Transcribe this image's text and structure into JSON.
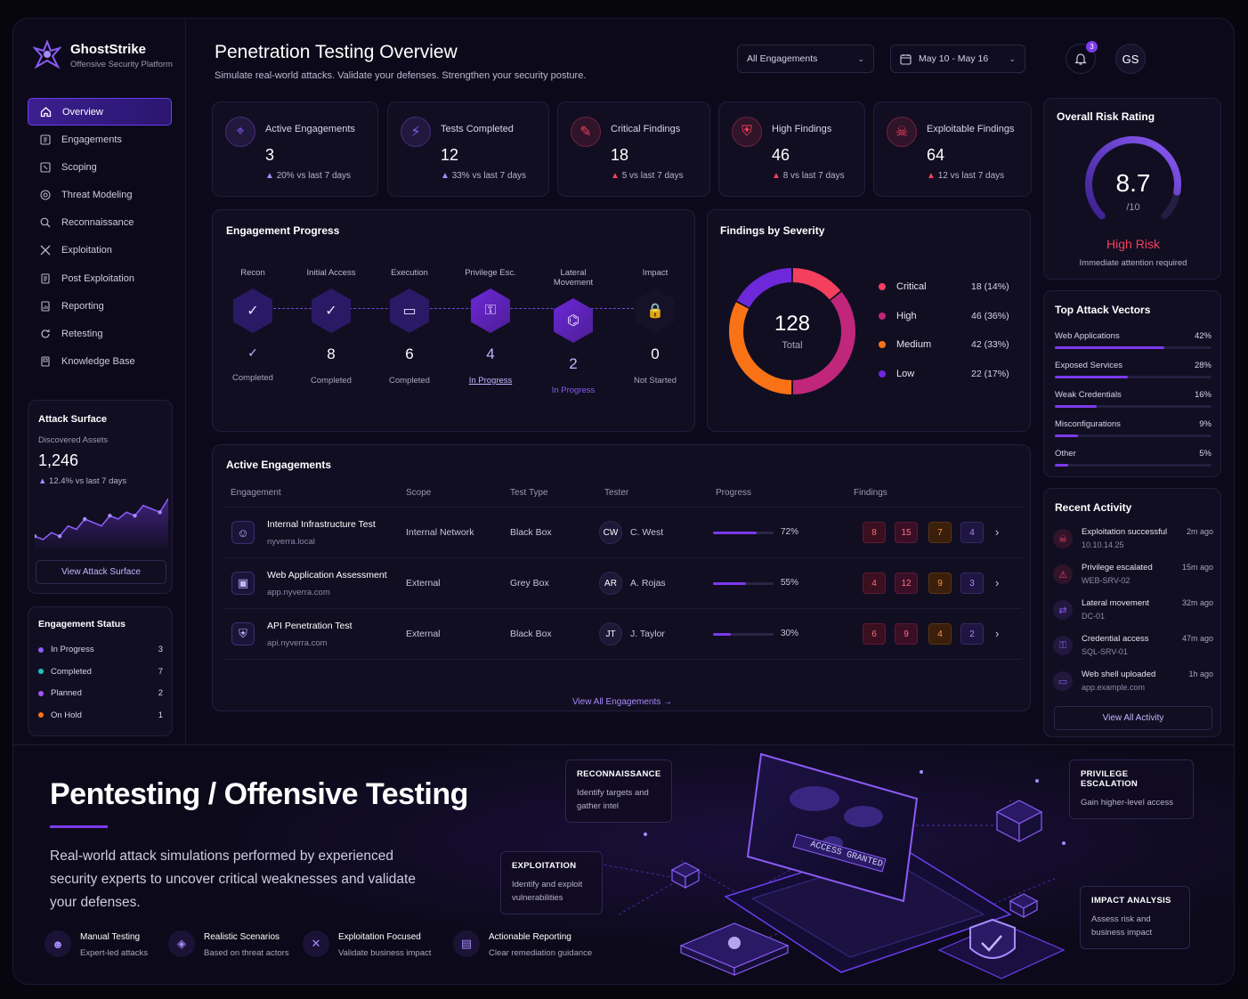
{
  "brand": {
    "name": "GhostStrike",
    "tagline": "Offensive Security Platform"
  },
  "nav": [
    {
      "label": "Overview",
      "icon": "home-icon",
      "active": true
    },
    {
      "label": "Engagements",
      "icon": "grid-icon"
    },
    {
      "label": "Scoping",
      "icon": "scope-icon"
    },
    {
      "label": "Threat Modeling",
      "icon": "target-icon"
    },
    {
      "label": "Reconnaissance",
      "icon": "search-icon"
    },
    {
      "label": "Exploitation",
      "icon": "swords-icon"
    },
    {
      "label": "Post Exploitation",
      "icon": "document-icon"
    },
    {
      "label": "Reporting",
      "icon": "report-icon"
    },
    {
      "label": "Retesting",
      "icon": "refresh-icon"
    },
    {
      "label": "Knowledge Base",
      "icon": "book-icon"
    }
  ],
  "attack_surface": {
    "title": "Attack Surface",
    "label": "Discovered Assets",
    "value": "1,246",
    "delta": "12.4% vs last 7 days",
    "sparkline": [
      3,
      2,
      4,
      3,
      6,
      5,
      8,
      7,
      6,
      9,
      8,
      10,
      9,
      12,
      11,
      10,
      14
    ],
    "button": "View Attack Surface"
  },
  "engagement_status": {
    "title": "Engagement Status",
    "items": [
      {
        "label": "In Progress",
        "count": "3",
        "color": "#8b5cf6"
      },
      {
        "label": "Completed",
        "count": "7",
        "color": "#22c1c3"
      },
      {
        "label": "Planned",
        "count": "2",
        "color": "#a855f7"
      },
      {
        "label": "On Hold",
        "count": "1",
        "color": "#f97316"
      }
    ]
  },
  "header": {
    "title": "Penetration Testing Overview",
    "subtitle": "Simulate real-world attacks. Validate your defenses. Strengthen your security posture.",
    "engagement_filter": "All Engagements",
    "date_range": "May 10 - May 16",
    "notifications": "3",
    "user_initials": "GS"
  },
  "stats": [
    {
      "label": "Active Engagements",
      "value": "3",
      "delta": "20% vs last 7 days",
      "icon": "crosshair-icon",
      "color": "#8b5cf6"
    },
    {
      "label": "Tests Completed",
      "value": "12",
      "delta": "33% vs last 7 days",
      "icon": "lightning-icon",
      "color": "#8b5cf6"
    },
    {
      "label": "Critical Findings",
      "value": "18",
      "delta": "5 vs last 7 days",
      "icon": "bug-icon",
      "color": "#f43f5e"
    },
    {
      "label": "High Findings",
      "value": "46",
      "delta": "8 vs last 7 days",
      "icon": "shield-alert-icon",
      "color": "#f43f5e"
    },
    {
      "label": "Exploitable Findings",
      "value": "64",
      "delta": "12 vs last 7 days",
      "icon": "skull-icon",
      "color": "#f43f5e"
    }
  ],
  "risk": {
    "title": "Overall Risk Rating",
    "score": "8.7",
    "scale": "/10",
    "score_value": 8.7,
    "level": "High Risk",
    "note": "Immediate attention required"
  },
  "engagement_progress": {
    "title": "Engagement Progress",
    "stages": [
      {
        "label": "Recon",
        "count": "",
        "status": "Completed",
        "icon": "check-icon"
      },
      {
        "label": "Initial Access",
        "count": "8",
        "status": "Completed",
        "icon": "check-icon"
      },
      {
        "label": "Execution",
        "count": "6",
        "status": "Completed",
        "icon": "terminal-icon"
      },
      {
        "label": "Privilege Esc.",
        "count": "4",
        "status": "In Progress",
        "icon": "key-icon"
      },
      {
        "label": "Lateral Movement",
        "count": "2",
        "status": "In Progress",
        "icon": "network-icon"
      },
      {
        "label": "Impact",
        "count": "0",
        "status": "Not Started",
        "icon": "lock-icon"
      }
    ]
  },
  "severity": {
    "title": "Findings by Severity",
    "total": "128",
    "total_label": "Total",
    "items": [
      {
        "label": "Critical",
        "value": "18 (14%)",
        "count": 18,
        "color": "#f43f5e"
      },
      {
        "label": "High",
        "value": "46 (36%)",
        "count": 46,
        "color": "#c0267a"
      },
      {
        "label": "Medium",
        "value": "42 (33%)",
        "count": 42,
        "color": "#f97316"
      },
      {
        "label": "Low",
        "value": "22 (17%)",
        "count": 22,
        "color": "#6d28d9"
      }
    ]
  },
  "vectors": {
    "title": "Top Attack Vectors",
    "items": [
      {
        "label": "Web Applications",
        "pct": "42%",
        "value": 0.42
      },
      {
        "label": "Exposed Services",
        "pct": "28%",
        "value": 0.28
      },
      {
        "label": "Weak Credentials",
        "pct": "16%",
        "value": 0.16
      },
      {
        "label": "Misconfigurations",
        "pct": "9%",
        "value": 0.09
      },
      {
        "label": "Other",
        "pct": "5%",
        "value": 0.05
      }
    ]
  },
  "table": {
    "title": "Active Engagements",
    "headers": [
      "Engagement",
      "Scope",
      "Test Type",
      "Tester",
      "Progress",
      "Findings"
    ],
    "rows": [
      {
        "name": "Internal Infrastructure Test",
        "host": "nyverra.local",
        "scope": "Internal Network",
        "type": "Black Box",
        "initials": "CW",
        "tester": "C. West",
        "progress": "72%",
        "progress_value": 0.72,
        "findings": [
          "8",
          "15",
          "7",
          "4"
        ],
        "icon": "user-target-icon"
      },
      {
        "name": "Web Application Assessment",
        "host": "app.nyverra.com",
        "scope": "External",
        "type": "Grey Box",
        "initials": "AR",
        "tester": "A. Rojas",
        "progress": "55%",
        "progress_value": 0.55,
        "findings": [
          "4",
          "12",
          "9",
          "3"
        ],
        "icon": "browser-icon"
      },
      {
        "name": "API Penetration Test",
        "host": "api.nyverra.com",
        "scope": "External",
        "type": "Black Box",
        "initials": "JT",
        "tester": "J. Taylor",
        "progress": "30%",
        "progress_value": 0.3,
        "findings": [
          "6",
          "9",
          "4",
          "2"
        ],
        "icon": "api-shield-icon"
      }
    ],
    "link": "View All Engagements →"
  },
  "activity": {
    "title": "Recent Activity",
    "items": [
      {
        "title": "Exploitation successful",
        "sub": "10.10.14.25",
        "time": "2m ago",
        "icon": "skull-icon",
        "color": "#f43f5e"
      },
      {
        "title": "Privilege escalated",
        "sub": "WEB-SRV-02",
        "time": "15m ago",
        "icon": "warning-icon",
        "color": "#f43f5e"
      },
      {
        "title": "Lateral movement",
        "sub": "DC-01",
        "time": "32m ago",
        "icon": "arrows-icon",
        "color": "#8b5cf6"
      },
      {
        "title": "Credential access",
        "sub": "SQL-SRV-01",
        "time": "47m ago",
        "icon": "key-icon",
        "color": "#8b5cf6"
      },
      {
        "title": "Web shell uploaded",
        "sub": "app.example.com",
        "time": "1h ago",
        "icon": "terminal-icon",
        "color": "#8b5cf6"
      }
    ],
    "button": "View All Activity"
  },
  "hero": {
    "title": "Pentesting / Offensive Testing",
    "description": "Real-world attack simulations performed by experienced security experts to uncover critical weaknesses and validate your defenses.",
    "features": [
      {
        "title": "Manual Testing",
        "sub": "Expert-led attacks",
        "icon": "hacker-icon"
      },
      {
        "title": "Realistic Scenarios",
        "sub": "Based on threat actors",
        "icon": "scenario-icon"
      },
      {
        "title": "Exploitation Focused",
        "sub": "Validate business impact",
        "icon": "swords-icon"
      },
      {
        "title": "Actionable Reporting",
        "sub": "Clear remediation guidance",
        "icon": "report-icon"
      }
    ],
    "callouts": [
      {
        "title": "RECONNAISSANCE",
        "sub": "Identify targets and gather intel"
      },
      {
        "title": "PRIVILEGE ESCALATION",
        "sub": "Gain higher-level access"
      },
      {
        "title": "EXPLOITATION",
        "sub": "Identify and exploit vulnerabilities"
      },
      {
        "title": "IMPACT ANALYSIS",
        "sub": "Assess risk and business impact"
      }
    ],
    "laptop_text": "ACCESS GRANTED"
  }
}
